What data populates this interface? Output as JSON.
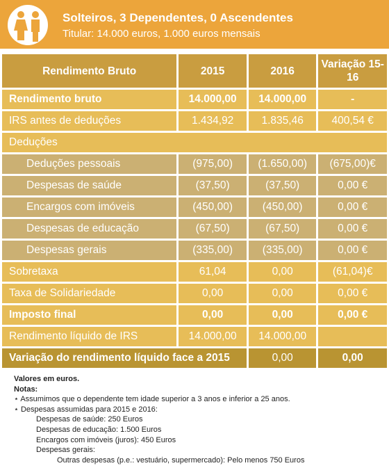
{
  "header": {
    "title": "Solteiros, 3 Dependentes, 0 Ascendentes",
    "subtitle": "Titular: 14.000 euros, 1.000 euros mensais"
  },
  "table": {
    "columns": [
      "Rendimento Bruto",
      "2015",
      "2016",
      "Variação 15-16"
    ],
    "rows": [
      [
        "Rendimento bruto",
        "14.000,00",
        "14.000,00",
        "-"
      ],
      [
        "IRS antes de deduções",
        "1.434,92",
        "1.835,46",
        "400,54 €"
      ],
      [
        "Deduções"
      ],
      [
        "Deduções pessoais",
        "(975,00)",
        "(1.650,00)",
        "(675,00)€"
      ],
      [
        "Despesas de saúde",
        "(37,50)",
        "(37,50)",
        "0,00 €"
      ],
      [
        "Encargos com imóveis",
        "(450,00)",
        "(450,00)",
        "0,00 €"
      ],
      [
        "Despesas de educação",
        "(67,50)",
        "(67,50)",
        "0,00 €"
      ],
      [
        "Despesas gerais",
        "(335,00)",
        "(335,00)",
        "0,00 €"
      ],
      [
        "Sobretaxa",
        "61,04",
        "0,00",
        "(61,04)€"
      ],
      [
        "Taxa de Solidariedade",
        "0,00",
        "0,00",
        "0,00 €"
      ],
      [
        "Imposto final",
        "0,00",
        "0,00",
        "0,00 €"
      ],
      [
        "Rendimento líquido de IRS",
        "14.000,00",
        "14.000,00",
        null
      ],
      [
        "Variação do rendimento líquido face a 2015",
        "0,00",
        "0,00"
      ]
    ]
  },
  "notes": [
    "Valores em euros.",
    "Notas:",
    "Assumimos que o dependente tem idade superior a 3 anos e inferior a 25 anos.",
    "Despesas assumidas para 2015 e 2016:",
    "Despesas de saúde: 250 Euros",
    "Despesas de educação: 1.500 Euros",
    "Encargos com imóveis (juros): 450 Euros",
    "Despesas gerais:",
    "Outras despesas (p.e.: vestuário, supermercado): Pelo menos 750 Euros"
  ]
}
